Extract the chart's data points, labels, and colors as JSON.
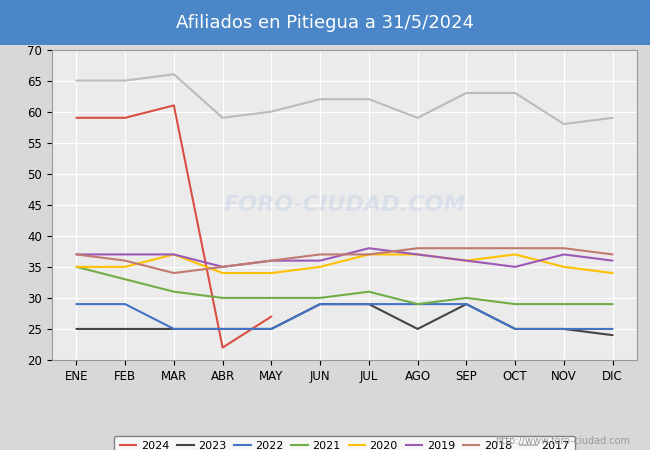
{
  "title": "Afiliados en Pitiegua a 31/5/2024",
  "title_bg_color": "#4a86c8",
  "title_text_color": "#ffffff",
  "ylim": [
    20,
    70
  ],
  "yticks": [
    20,
    25,
    30,
    35,
    40,
    45,
    50,
    55,
    60,
    65,
    70
  ],
  "months": [
    "ENE",
    "FEB",
    "MAR",
    "ABR",
    "MAY",
    "JUN",
    "JUL",
    "AGO",
    "SEP",
    "OCT",
    "NOV",
    "DIC"
  ],
  "series": {
    "2024": {
      "data": [
        59,
        59,
        61,
        22,
        27,
        null,
        null,
        null,
        null,
        null,
        null,
        null
      ],
      "color": "#d94f43",
      "linewidth": 1.5
    },
    "2023": {
      "data": [
        25,
        25,
        25,
        25,
        25,
        29,
        29,
        25,
        29,
        25,
        25,
        24
      ],
      "color": "#444444",
      "linewidth": 1.5
    },
    "2022": {
      "data": [
        29,
        29,
        25,
        25,
        25,
        29,
        29,
        29,
        29,
        25,
        25,
        25
      ],
      "color": "#4472c4",
      "linewidth": 1.5
    },
    "2021": {
      "data": [
        35,
        33,
        31,
        30,
        30,
        30,
        31,
        29,
        30,
        29,
        29,
        29
      ],
      "color": "#70ad47",
      "linewidth": 1.5
    },
    "2020": {
      "data": [
        35,
        35,
        37,
        34,
        34,
        35,
        37,
        37,
        36,
        37,
        35,
        34
      ],
      "color": "#ffc000",
      "linewidth": 1.5
    },
    "2019": {
      "data": [
        37,
        37,
        37,
        35,
        36,
        36,
        38,
        37,
        36,
        35,
        37,
        36
      ],
      "color": "#9b59b6",
      "linewidth": 1.5
    },
    "2018": {
      "data": [
        37,
        36,
        34,
        35,
        36,
        37,
        37,
        38,
        38,
        38,
        38,
        37
      ],
      "color": "#c07a6e",
      "linewidth": 1.5
    },
    "2017": {
      "data": [
        65,
        65,
        66,
        59,
        60,
        62,
        62,
        59,
        63,
        63,
        58,
        59
      ],
      "color": "#bbbbbb",
      "linewidth": 1.5
    }
  },
  "legend_order": [
    "2024",
    "2023",
    "2022",
    "2021",
    "2020",
    "2019",
    "2018",
    "2017"
  ],
  "plot_bg_color": "#ebebeb",
  "fig_bg_color": "#d8d8d8",
  "grid_color": "#ffffff",
  "footer_text": "http://www.foro-ciudad.com"
}
